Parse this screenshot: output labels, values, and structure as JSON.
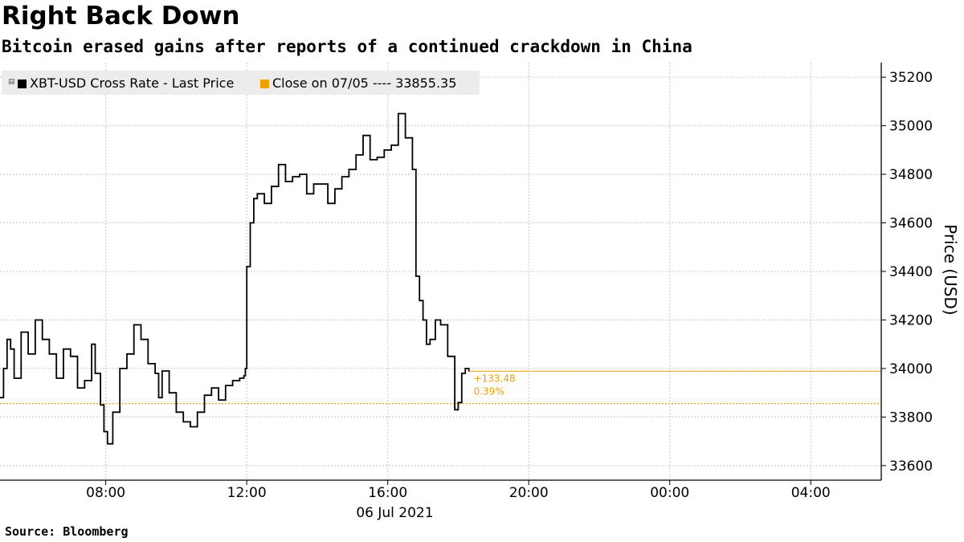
{
  "title": "Right Back Down",
  "subtitle": "Bitcoin erased gains after reports of a continued crackdown in China",
  "source": "Source: Bloomberg",
  "legend": {
    "series_label": "XBT-USD Cross Rate - Last Price",
    "close_label": "Close on 07/05 ---- 33855.35",
    "series_color": "#000000",
    "close_color": "#f0a000"
  },
  "annotation": {
    "change": "+133.48",
    "pct": "0.39%"
  },
  "chart_data": {
    "type": "line",
    "ylabel": "Price (USD)",
    "date_label": "06 Jul 2021",
    "ylim": [
      33540,
      35260
    ],
    "yticks": [
      33600,
      33800,
      34000,
      34200,
      34400,
      34600,
      34800,
      35000,
      35200
    ],
    "xticks": [
      "08:00",
      "12:00",
      "16:00",
      "20:00",
      "00:00",
      "04:00"
    ],
    "x_range_hours": [
      5.0,
      30.0
    ],
    "xtick_hours": [
      8,
      12,
      16,
      20,
      24,
      28
    ],
    "reference_close": 33855.35,
    "last_price": 33988.83,
    "series": [
      {
        "name": "XBT-USD Cross Rate - Last Price",
        "x": [
          5.0,
          5.1,
          5.2,
          5.3,
          5.4,
          5.6,
          5.8,
          6.0,
          6.2,
          6.4,
          6.6,
          6.8,
          7.0,
          7.2,
          7.4,
          7.6,
          7.7,
          7.85,
          7.95,
          8.05,
          8.2,
          8.4,
          8.6,
          8.8,
          9.0,
          9.2,
          9.4,
          9.5,
          9.6,
          9.8,
          10.0,
          10.2,
          10.4,
          10.6,
          10.8,
          11.0,
          11.2,
          11.4,
          11.6,
          11.8,
          11.92,
          11.96,
          12.0,
          12.1,
          12.2,
          12.3,
          12.5,
          12.7,
          12.9,
          13.1,
          13.3,
          13.5,
          13.7,
          13.9,
          14.1,
          14.3,
          14.5,
          14.7,
          14.9,
          15.1,
          15.3,
          15.5,
          15.7,
          15.9,
          16.1,
          16.3,
          16.5,
          16.7,
          16.8,
          16.9,
          17.0,
          17.1,
          17.2,
          17.35,
          17.5,
          17.7,
          17.9,
          18.0,
          18.1,
          18.2,
          18.3
        ],
        "y": [
          33880,
          34000,
          34120,
          34080,
          33960,
          34150,
          34060,
          34200,
          34120,
          34060,
          33960,
          34080,
          34050,
          33920,
          33950,
          34100,
          33980,
          33850,
          33740,
          33690,
          33820,
          34000,
          34060,
          34180,
          34120,
          34020,
          33980,
          33880,
          33990,
          33900,
          33820,
          33780,
          33760,
          33820,
          33890,
          33920,
          33870,
          33930,
          33950,
          33960,
          33970,
          34000,
          34420,
          34600,
          34700,
          34720,
          34680,
          34750,
          34840,
          34770,
          34790,
          34800,
          34720,
          34760,
          34760,
          34680,
          34740,
          34790,
          34820,
          34880,
          34960,
          34860,
          34870,
          34900,
          34920,
          35050,
          34950,
          34820,
          34380,
          34280,
          34200,
          34100,
          34120,
          34200,
          34180,
          34050,
          33830,
          33860,
          33980,
          34000,
          33988
        ]
      }
    ]
  }
}
